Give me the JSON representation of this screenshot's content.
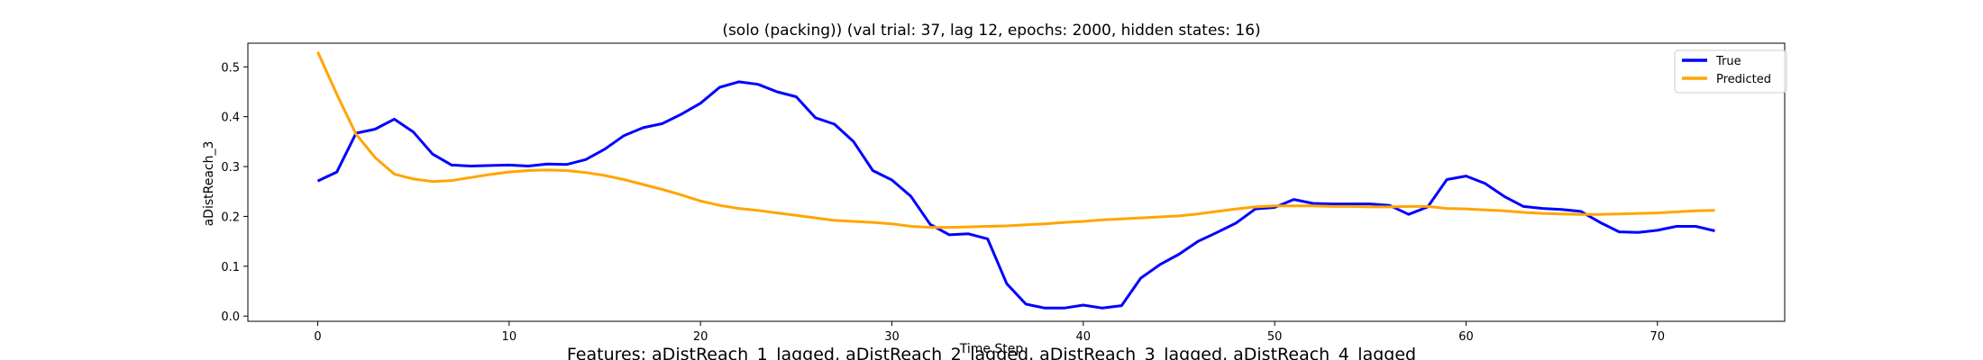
{
  "chart_data": {
    "type": "line",
    "title": "(solo (packing)) (val trial: 37, lag 12, epochs: 2000, hidden states: 16)",
    "xlabel": "Time Step",
    "ylabel": "aDistReach_3",
    "caption": "Features: aDistReach_1_lagged, aDistReach_2_lagged, aDistReach_3_lagged, aDistReach_4_lagged",
    "xlim": [
      -3.65,
      76.65
    ],
    "ylim": [
      -0.0105,
      0.5475
    ],
    "xticks": [
      0,
      10,
      20,
      30,
      40,
      50,
      60,
      70
    ],
    "yticks": [
      0.0,
      0.1,
      0.2,
      0.3,
      0.4,
      0.5
    ],
    "ytick_labels": [
      "0.0",
      "0.1",
      "0.2",
      "0.3",
      "0.4",
      "0.5"
    ],
    "legend_position": "top-right",
    "grid": false,
    "series": [
      {
        "name": "True",
        "color": "#0000ff",
        "x": [
          0,
          1,
          2,
          3,
          4,
          5,
          6,
          7,
          8,
          9,
          10,
          11,
          12,
          13,
          14,
          15,
          16,
          17,
          18,
          19,
          20,
          21,
          22,
          23,
          24,
          25,
          26,
          27,
          28,
          29,
          30,
          31,
          32,
          33,
          34,
          35,
          36,
          37,
          38,
          39,
          40,
          41,
          42,
          43,
          44,
          45,
          46,
          47,
          48,
          49,
          50,
          51,
          52,
          53,
          54,
          55,
          56,
          57,
          58,
          59,
          60,
          61,
          62,
          63,
          64,
          65,
          66,
          67,
          68,
          69,
          70,
          71,
          72,
          73
        ],
        "values": [
          0.271,
          0.289,
          0.367,
          0.375,
          0.395,
          0.369,
          0.325,
          0.303,
          0.301,
          0.302,
          0.303,
          0.301,
          0.305,
          0.304,
          0.314,
          0.335,
          0.362,
          0.378,
          0.386,
          0.405,
          0.427,
          0.459,
          0.47,
          0.465,
          0.45,
          0.44,
          0.398,
          0.385,
          0.35,
          0.292,
          0.273,
          0.24,
          0.184,
          0.163,
          0.165,
          0.155,
          0.065,
          0.024,
          0.016,
          0.016,
          0.022,
          0.016,
          0.021,
          0.076,
          0.103,
          0.124,
          0.15,
          0.168,
          0.187,
          0.215,
          0.218,
          0.234,
          0.226,
          0.225,
          0.225,
          0.225,
          0.222,
          0.204,
          0.219,
          0.274,
          0.281,
          0.266,
          0.24,
          0.22,
          0.216,
          0.214,
          0.21,
          0.188,
          0.169,
          0.168,
          0.172,
          0.18,
          0.18,
          0.171
        ]
      },
      {
        "name": "Predicted",
        "color": "#ffa500",
        "x": [
          0,
          1,
          2,
          3,
          4,
          5,
          6,
          7,
          8,
          9,
          10,
          11,
          12,
          13,
          14,
          15,
          16,
          17,
          18,
          19,
          20,
          21,
          22,
          23,
          24,
          25,
          26,
          27,
          28,
          29,
          30,
          31,
          32,
          33,
          34,
          35,
          36,
          37,
          38,
          39,
          40,
          41,
          42,
          43,
          44,
          45,
          46,
          47,
          48,
          49,
          50,
          51,
          52,
          53,
          54,
          55,
          56,
          57,
          58,
          59,
          60,
          61,
          62,
          63,
          64,
          65,
          66,
          67,
          68,
          69,
          70,
          71,
          72,
          73
        ],
        "values": [
          0.53,
          0.445,
          0.365,
          0.318,
          0.285,
          0.275,
          0.27,
          0.272,
          0.278,
          0.284,
          0.289,
          0.292,
          0.293,
          0.292,
          0.288,
          0.282,
          0.274,
          0.264,
          0.254,
          0.243,
          0.231,
          0.222,
          0.216,
          0.212,
          0.207,
          0.202,
          0.197,
          0.192,
          0.19,
          0.188,
          0.185,
          0.18,
          0.178,
          0.178,
          0.179,
          0.18,
          0.181,
          0.183,
          0.185,
          0.188,
          0.19,
          0.193,
          0.195,
          0.197,
          0.199,
          0.201,
          0.205,
          0.21,
          0.215,
          0.219,
          0.221,
          0.221,
          0.221,
          0.22,
          0.22,
          0.219,
          0.219,
          0.22,
          0.22,
          0.216,
          0.215,
          0.213,
          0.211,
          0.208,
          0.206,
          0.205,
          0.204,
          0.204,
          0.205,
          0.206,
          0.207,
          0.209,
          0.211,
          0.212
        ]
      }
    ]
  }
}
